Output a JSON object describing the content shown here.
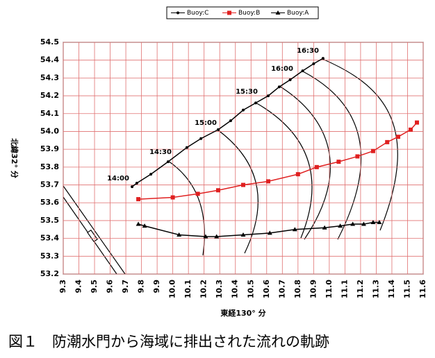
{
  "chart_data": {
    "type": "line",
    "xlabel": "東経130° 分",
    "ylabel": "北緯32° 分",
    "caption": "図１　防潮水門から海域に排出された流れの軌跡",
    "xlim": [
      9.3,
      11.6
    ],
    "xticks": [
      9.3,
      9.4,
      9.5,
      9.6,
      9.7,
      9.8,
      9.9,
      {
        "value": 10.0,
        "label": "10.0"
      },
      10.1,
      10.2,
      10.3,
      10.4,
      10.5,
      10.6,
      10.7,
      10.8,
      10.9,
      {
        "value": 11.0,
        "label": "11.0"
      },
      11.1,
      11.2,
      11.3,
      11.4,
      11.5,
      11.6
    ],
    "ylim": [
      53.2,
      54.5
    ],
    "yticks": [
      53.2,
      53.3,
      53.4,
      53.5,
      53.6,
      53.7,
      53.8,
      53.9,
      {
        "value": 54.0,
        "label": "54.0"
      },
      54.1,
      54.2,
      54.3,
      54.4,
      54.5
    ],
    "grid": true,
    "annotations": [
      "14:00",
      "14:30",
      "15:00",
      "15:30",
      "16:00",
      "16:30"
    ],
    "series": [
      {
        "name": "Buoy:C",
        "color": "#000000",
        "marker": "circle",
        "x": [
          9.74,
          9.77,
          9.86,
          9.97,
          10.09,
          10.18,
          10.29,
          10.37,
          10.45,
          10.53,
          10.61,
          10.68,
          10.75,
          10.83,
          10.9,
          10.96
        ],
        "values": [
          53.69,
          53.71,
          53.76,
          53.83,
          53.91,
          53.96,
          54.01,
          54.06,
          54.12,
          54.16,
          54.2,
          54.25,
          54.29,
          54.34,
          54.38,
          54.41
        ]
      },
      {
        "name": "Buoy:B",
        "color": "#e02020",
        "marker": "square",
        "x": [
          9.78,
          10.0,
          10.16,
          10.29,
          10.45,
          10.61,
          10.8,
          10.92,
          11.06,
          11.18,
          11.28,
          11.37,
          11.44,
          11.52,
          11.56
        ],
        "values": [
          53.62,
          53.63,
          53.65,
          53.67,
          53.7,
          53.72,
          53.76,
          53.8,
          53.83,
          53.86,
          53.89,
          53.94,
          53.97,
          54.01,
          54.05
        ]
      },
      {
        "name": "Buoy:A",
        "color": "#000000",
        "marker": "triangle",
        "x": [
          9.78,
          9.82,
          10.04,
          10.21,
          10.28,
          10.45,
          10.62,
          10.78,
          10.97,
          11.07,
          11.15,
          11.22,
          11.28,
          11.32
        ],
        "values": [
          53.48,
          53.47,
          53.42,
          53.41,
          53.41,
          53.42,
          53.43,
          53.45,
          53.46,
          53.47,
          53.48,
          53.48,
          53.49,
          53.49
        ]
      }
    ]
  }
}
